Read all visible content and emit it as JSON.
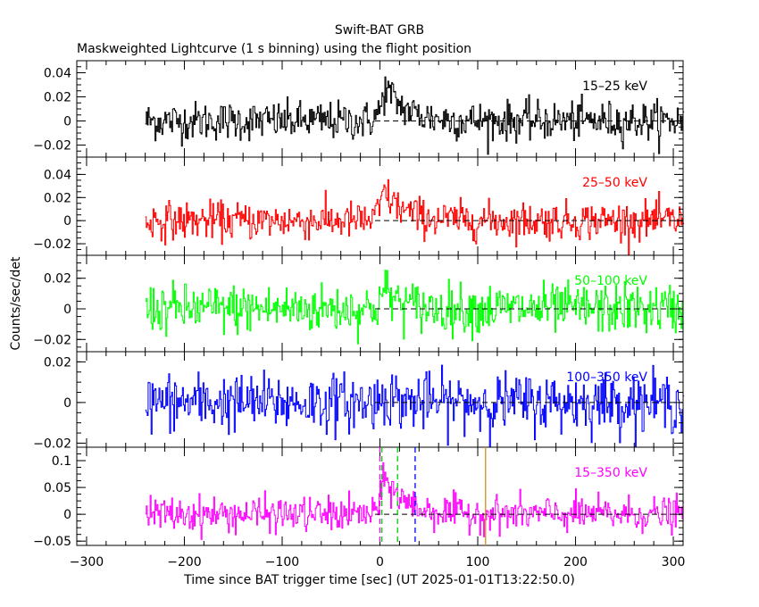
{
  "header": {
    "title": "Swift-BAT GRB",
    "subtitle": "Maskweighted Lightcurve (1 s binning) using the flight position"
  },
  "axes": {
    "xlabel": "Time since BAT trigger time [sec] (UT 2025-01-01T13:22:50.0)",
    "ylabel": "Counts/sec/det"
  },
  "colors": {
    "panel_1": "#000000",
    "panel_2": "#ff0000",
    "panel_3": "#00ff00",
    "panel_4": "#0000ff",
    "panel_5": "#ff00ff",
    "green_marker": "#00cc00",
    "blue_marker": "#0000ff",
    "orange_marker": "#d98c1a",
    "magenta_marker": "#ff00ff"
  },
  "chart_data": {
    "type": "line",
    "binning_sec": 1,
    "xlim": [
      -310,
      310
    ],
    "x_ticks": [
      -300,
      -200,
      -100,
      0,
      100,
      200,
      300
    ],
    "x_tick_labels": [
      "−300",
      "−200",
      "−100",
      "0",
      "100",
      "200",
      "300"
    ],
    "data_x_range": [
      -240,
      310
    ],
    "panels": [
      {
        "label": "15–25 keV",
        "color": "#000000",
        "ylim": [
          -0.03,
          0.05
        ],
        "y_ticks": [
          -0.02,
          0,
          0.02,
          0.04
        ],
        "y_tick_labels": [
          "−0.02",
          "0",
          "0.02",
          "0.04"
        ],
        "noise_sigma": 0.008,
        "peak": {
          "time": 5,
          "amplitude": 0.028,
          "rise_sec": 5,
          "decay_sec": 20
        }
      },
      {
        "label": "25–50 keV",
        "color": "#ff0000",
        "ylim": [
          -0.03,
          0.055
        ],
        "y_ticks": [
          -0.02,
          0,
          0.02,
          0.04
        ],
        "y_tick_labels": [
          "−0.02",
          "0",
          "0.02",
          "0.04"
        ],
        "noise_sigma": 0.008,
        "peak": {
          "time": 3,
          "amplitude": 0.026,
          "rise_sec": 4,
          "decay_sec": 20
        }
      },
      {
        "label": "50–100 keV",
        "color": "#00ff00",
        "ylim": [
          -0.028,
          0.035
        ],
        "y_ticks": [
          -0.02,
          0,
          0.02
        ],
        "y_tick_labels": [
          "−0.02",
          "0",
          "0.02"
        ],
        "noise_sigma": 0.008,
        "peak": {
          "time": 3,
          "amplitude": 0.013,
          "rise_sec": 4,
          "decay_sec": 16
        }
      },
      {
        "label": "100–350 keV",
        "color": "#0000ff",
        "ylim": [
          -0.022,
          0.025
        ],
        "y_ticks": [
          -0.02,
          0,
          0.02
        ],
        "y_tick_labels": [
          "−0.02",
          "0",
          "0.02"
        ],
        "noise_sigma": 0.007,
        "peak": {
          "time": 3,
          "amplitude": 0.004,
          "rise_sec": 4,
          "decay_sec": 12
        }
      },
      {
        "label": "15–350 keV",
        "color": "#ff00ff",
        "ylim": [
          -0.058,
          0.125
        ],
        "y_ticks": [
          -0.05,
          0,
          0.05,
          0.1
        ],
        "y_tick_labels": [
          "−0.05",
          "0",
          "0.05",
          "0.1"
        ],
        "noise_sigma": 0.016,
        "peak": {
          "time": 4,
          "amplitude": 0.07,
          "rise_sec": 4,
          "decay_sec": 20
        }
      }
    ],
    "markers": [
      {
        "x": 0,
        "color": "#ff00ff",
        "style": "dashed",
        "panel": 5
      },
      {
        "x": 2,
        "color": "#00cc00",
        "style": "dashed",
        "panel": 5
      },
      {
        "x": 18,
        "color": "#00cc00",
        "style": "dashed",
        "panel": 5
      },
      {
        "x": 36,
        "color": "#0000ff",
        "style": "dashed",
        "panel": 5
      },
      {
        "x": 108,
        "color": "#d98c1a",
        "style": "solid",
        "panel": 5
      }
    ],
    "baseline_style": "dashed",
    "grid": false
  }
}
